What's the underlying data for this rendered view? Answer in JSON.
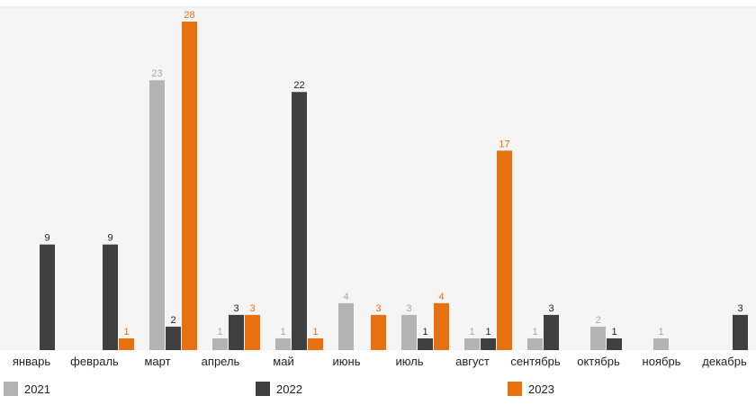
{
  "chart_data": {
    "type": "bar",
    "categories": [
      "январь",
      "февраль",
      "март",
      "апрель",
      "май",
      "июнь",
      "июль",
      "август",
      "сентябрь",
      "октябрь",
      "ноябрь",
      "декабрь"
    ],
    "series": [
      {
        "name": "2021",
        "color": "#b3b3b3",
        "values": [
          0,
          0,
          23,
          1,
          1,
          4,
          3,
          1,
          1,
          2,
          1,
          0
        ]
      },
      {
        "name": "2022",
        "color": "#3f3f3f",
        "values": [
          9,
          9,
          2,
          3,
          22,
          0,
          1,
          1,
          3,
          1,
          0,
          3
        ]
      },
      {
        "name": "2023",
        "color": "#e8700e",
        "values": [
          0,
          1,
          28,
          3,
          1,
          3,
          4,
          17,
          0,
          0,
          0,
          0
        ]
      }
    ],
    "ylim": [
      0,
      28
    ],
    "grid": false,
    "legend_position": "bottom",
    "background_color": "#f5f5f5",
    "label_colors": {
      "2021": "#a8a8a8",
      "2022": "#222222",
      "2023": "#e8700e"
    }
  }
}
